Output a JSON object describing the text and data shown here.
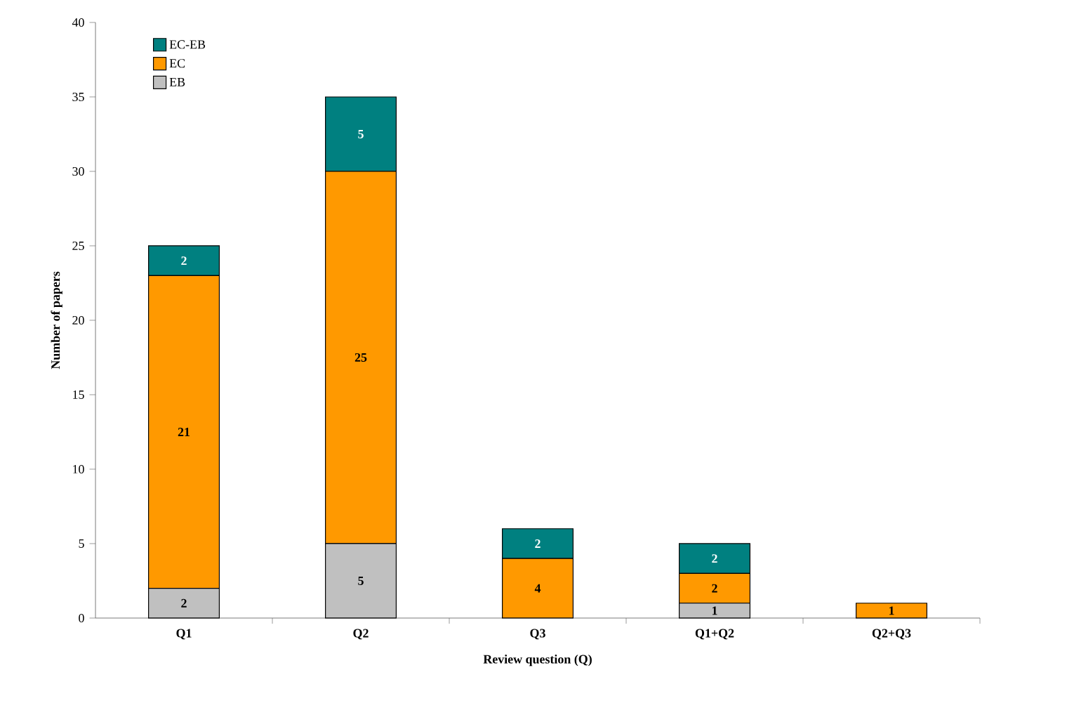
{
  "chart_data": {
    "type": "bar",
    "stacked": true,
    "xlabel": "Review question (Q)",
    "ylabel": "Number of papers",
    "categories": [
      "Q1",
      "Q2",
      "Q3",
      "Q1+Q2",
      "Q2+Q3"
    ],
    "series": [
      {
        "name": "EB",
        "color": "#c0c0c0",
        "values": [
          2,
          5,
          0,
          1,
          0
        ],
        "value_labels": [
          "2",
          "5",
          null,
          "1",
          null
        ]
      },
      {
        "name": "EC",
        "color": "#ff9900",
        "values": [
          21,
          25,
          4,
          2,
          1
        ],
        "value_labels": [
          "21",
          "25",
          "4",
          "2",
          "1"
        ]
      },
      {
        "name": "EC-EB",
        "color": "#008080",
        "values": [
          2,
          5,
          2,
          2,
          0
        ],
        "value_labels": [
          "2",
          "5",
          "2",
          "2",
          null
        ]
      }
    ],
    "ylim": [
      0,
      40
    ],
    "yticks": [
      0,
      5,
      10,
      15,
      20,
      25,
      30,
      35,
      40
    ],
    "legend": "top left",
    "grid": false
  }
}
